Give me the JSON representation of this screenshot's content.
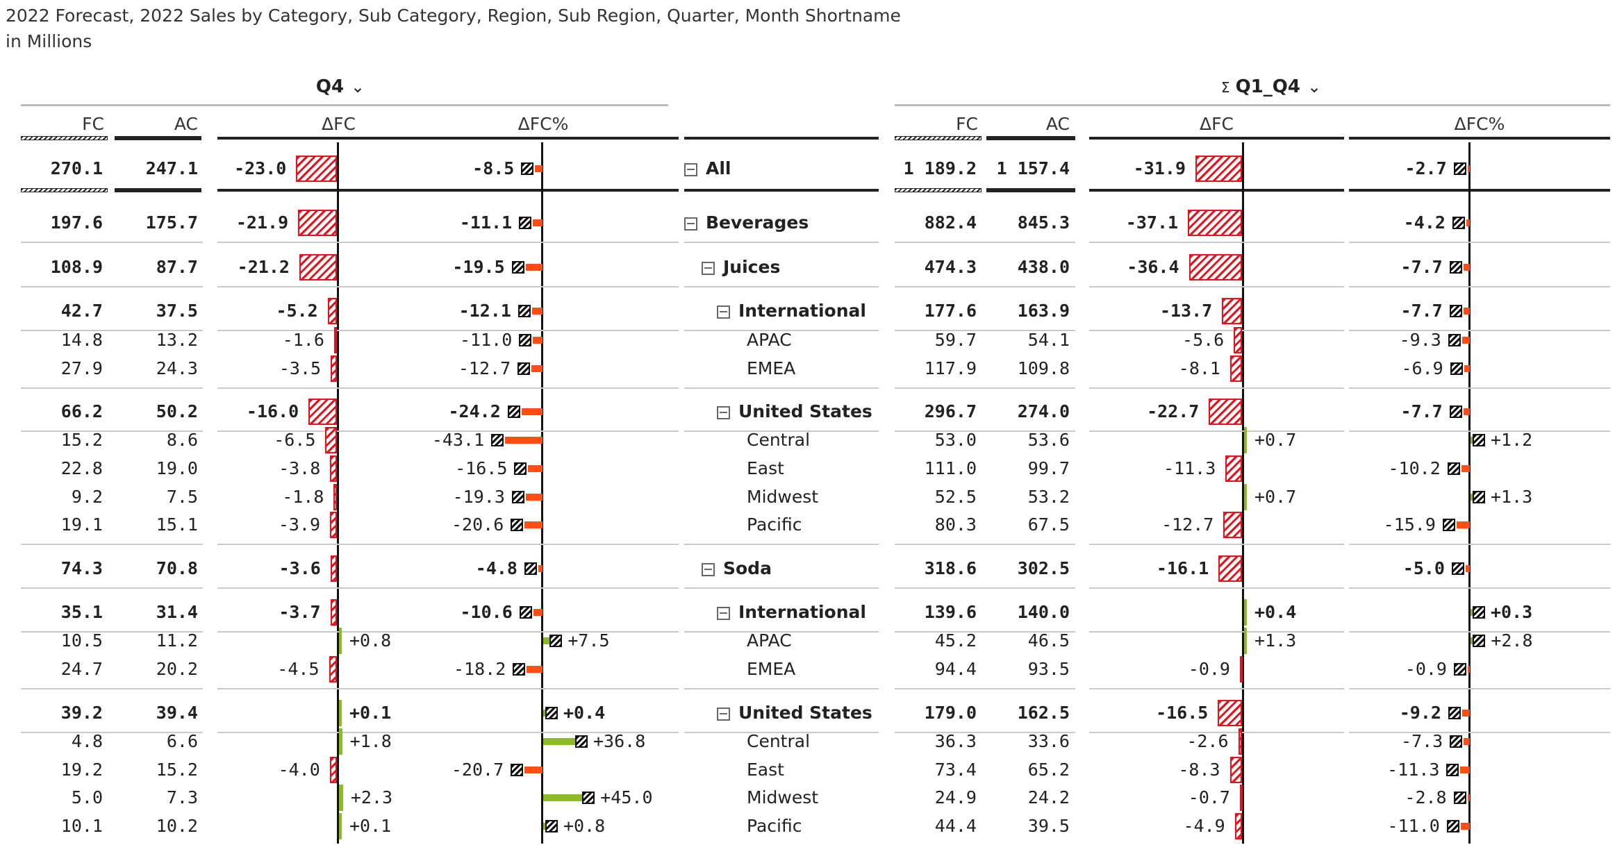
{
  "title": {
    "line1": "2022 Forecast, 2022 Sales by Category, Sub Category, Region, Sub Region, Quarter, Month Shortname",
    "line2": "in Millions"
  },
  "groups": {
    "left": {
      "label": "Q4",
      "icon": "chevron-down-icon"
    },
    "right": {
      "sigma": "Σ",
      "label": "Q1_Q4",
      "icon": "chevron-down-icon"
    }
  },
  "columns": {
    "fc": "FC",
    "ac": "AC",
    "dfc": "ΔFC",
    "dfcp": "ΔFC%"
  },
  "colors": {
    "negative": "#e8101b",
    "negative_pct": "#ff4d14",
    "positive": "#8dbb25",
    "axis": "#111111"
  },
  "rows": [
    {
      "label": "All",
      "level": 0,
      "toggle": true,
      "bold": true,
      "l_fc": "270.1",
      "l_ac": "247.1",
      "l_dfc": "-23.0",
      "l_dfc_v": -23.0,
      "l_pct": "-8.5",
      "l_pct_v": -8.5,
      "r_fc": "1 189.2",
      "r_ac": "1 157.4",
      "r_dfc": "-31.9",
      "r_dfc_v": -31.9,
      "r_pct": "-2.7",
      "r_pct_v": -2.7
    },
    {
      "label": "Beverages",
      "level": 0,
      "toggle": true,
      "bold": true,
      "l_fc": "197.6",
      "l_ac": "175.7",
      "l_dfc": "-21.9",
      "l_dfc_v": -21.9,
      "l_pct": "-11.1",
      "l_pct_v": -11.1,
      "r_fc": "882.4",
      "r_ac": "845.3",
      "r_dfc": "-37.1",
      "r_dfc_v": -37.1,
      "r_pct": "-4.2",
      "r_pct_v": -4.2
    },
    {
      "label": "Juices",
      "level": 1,
      "toggle": true,
      "bold": true,
      "l_fc": "108.9",
      "l_ac": "87.7",
      "l_dfc": "-21.2",
      "l_dfc_v": -21.2,
      "l_pct": "-19.5",
      "l_pct_v": -19.5,
      "r_fc": "474.3",
      "r_ac": "438.0",
      "r_dfc": "-36.4",
      "r_dfc_v": -36.4,
      "r_pct": "-7.7",
      "r_pct_v": -7.7
    },
    {
      "label": "International",
      "level": 2,
      "toggle": true,
      "bold": true,
      "l_fc": "42.7",
      "l_ac": "37.5",
      "l_dfc": "-5.2",
      "l_dfc_v": -5.2,
      "l_pct": "-12.1",
      "l_pct_v": -12.1,
      "r_fc": "177.6",
      "r_ac": "163.9",
      "r_dfc": "-13.7",
      "r_dfc_v": -13.7,
      "r_pct": "-7.7",
      "r_pct_v": -7.7
    },
    {
      "label": "APAC",
      "level": 3,
      "toggle": false,
      "bold": false,
      "l_fc": "14.8",
      "l_ac": "13.2",
      "l_dfc": "-1.6",
      "l_dfc_v": -1.6,
      "l_pct": "-11.0",
      "l_pct_v": -11.0,
      "r_fc": "59.7",
      "r_ac": "54.1",
      "r_dfc": "-5.6",
      "r_dfc_v": -5.6,
      "r_pct": "-9.3",
      "r_pct_v": -9.3
    },
    {
      "label": "EMEA",
      "level": 3,
      "toggle": false,
      "bold": false,
      "l_fc": "27.9",
      "l_ac": "24.3",
      "l_dfc": "-3.5",
      "l_dfc_v": -3.5,
      "l_pct": "-12.7",
      "l_pct_v": -12.7,
      "r_fc": "117.9",
      "r_ac": "109.8",
      "r_dfc": "-8.1",
      "r_dfc_v": -8.1,
      "r_pct": "-6.9",
      "r_pct_v": -6.9
    },
    {
      "label": "United States",
      "level": 2,
      "toggle": true,
      "bold": true,
      "l_fc": "66.2",
      "l_ac": "50.2",
      "l_dfc": "-16.0",
      "l_dfc_v": -16.0,
      "l_pct": "-24.2",
      "l_pct_v": -24.2,
      "r_fc": "296.7",
      "r_ac": "274.0",
      "r_dfc": "-22.7",
      "r_dfc_v": -22.7,
      "r_pct": "-7.7",
      "r_pct_v": -7.7
    },
    {
      "label": "Central",
      "level": 3,
      "toggle": false,
      "bold": false,
      "l_fc": "15.2",
      "l_ac": "8.6",
      "l_dfc": "-6.5",
      "l_dfc_v": -6.5,
      "l_pct": "-43.1",
      "l_pct_v": -43.1,
      "r_fc": "53.0",
      "r_ac": "53.6",
      "r_dfc": "+0.7",
      "r_dfc_v": 0.7,
      "r_pct": "+1.2",
      "r_pct_v": 1.2
    },
    {
      "label": "East",
      "level": 3,
      "toggle": false,
      "bold": false,
      "l_fc": "22.8",
      "l_ac": "19.0",
      "l_dfc": "-3.8",
      "l_dfc_v": -3.8,
      "l_pct": "-16.5",
      "l_pct_v": -16.5,
      "r_fc": "111.0",
      "r_ac": "99.7",
      "r_dfc": "-11.3",
      "r_dfc_v": -11.3,
      "r_pct": "-10.2",
      "r_pct_v": -10.2
    },
    {
      "label": "Midwest",
      "level": 3,
      "toggle": false,
      "bold": false,
      "l_fc": "9.2",
      "l_ac": "7.5",
      "l_dfc": "-1.8",
      "l_dfc_v": -1.8,
      "l_pct": "-19.3",
      "l_pct_v": -19.3,
      "r_fc": "52.5",
      "r_ac": "53.2",
      "r_dfc": "+0.7",
      "r_dfc_v": 0.7,
      "r_pct": "+1.3",
      "r_pct_v": 1.3
    },
    {
      "label": "Pacific",
      "level": 3,
      "toggle": false,
      "bold": false,
      "l_fc": "19.1",
      "l_ac": "15.1",
      "l_dfc": "-3.9",
      "l_dfc_v": -3.9,
      "l_pct": "-20.6",
      "l_pct_v": -20.6,
      "r_fc": "80.3",
      "r_ac": "67.5",
      "r_dfc": "-12.7",
      "r_dfc_v": -12.7,
      "r_pct": "-15.9",
      "r_pct_v": -15.9
    },
    {
      "label": "Soda",
      "level": 1,
      "toggle": true,
      "bold": true,
      "l_fc": "74.3",
      "l_ac": "70.8",
      "l_dfc": "-3.6",
      "l_dfc_v": -3.6,
      "l_pct": "-4.8",
      "l_pct_v": -4.8,
      "r_fc": "318.6",
      "r_ac": "302.5",
      "r_dfc": "-16.1",
      "r_dfc_v": -16.1,
      "r_pct": "-5.0",
      "r_pct_v": -5.0
    },
    {
      "label": "International",
      "level": 2,
      "toggle": true,
      "bold": true,
      "l_fc": "35.1",
      "l_ac": "31.4",
      "l_dfc": "-3.7",
      "l_dfc_v": -3.7,
      "l_pct": "-10.6",
      "l_pct_v": -10.6,
      "r_fc": "139.6",
      "r_ac": "140.0",
      "r_dfc": "+0.4",
      "r_dfc_v": 0.4,
      "r_pct": "+0.3",
      "r_pct_v": 0.3
    },
    {
      "label": "APAC",
      "level": 3,
      "toggle": false,
      "bold": false,
      "l_fc": "10.5",
      "l_ac": "11.2",
      "l_dfc": "+0.8",
      "l_dfc_v": 0.8,
      "l_pct": "+7.5",
      "l_pct_v": 7.5,
      "r_fc": "45.2",
      "r_ac": "46.5",
      "r_dfc": "+1.3",
      "r_dfc_v": 1.3,
      "r_pct": "+2.8",
      "r_pct_v": 2.8
    },
    {
      "label": "EMEA",
      "level": 3,
      "toggle": false,
      "bold": false,
      "l_fc": "24.7",
      "l_ac": "20.2",
      "l_dfc": "-4.5",
      "l_dfc_v": -4.5,
      "l_pct": "-18.2",
      "l_pct_v": -18.2,
      "r_fc": "94.4",
      "r_ac": "93.5",
      "r_dfc": "-0.9",
      "r_dfc_v": -0.9,
      "r_pct": "-0.9",
      "r_pct_v": -0.9
    },
    {
      "label": "United States",
      "level": 2,
      "toggle": true,
      "bold": true,
      "l_fc": "39.2",
      "l_ac": "39.4",
      "l_dfc": "+0.1",
      "l_dfc_v": 0.1,
      "l_pct": "+0.4",
      "l_pct_v": 0.4,
      "r_fc": "179.0",
      "r_ac": "162.5",
      "r_dfc": "-16.5",
      "r_dfc_v": -16.5,
      "r_pct": "-9.2",
      "r_pct_v": -9.2
    },
    {
      "label": "Central",
      "level": 3,
      "toggle": false,
      "bold": false,
      "l_fc": "4.8",
      "l_ac": "6.6",
      "l_dfc": "+1.8",
      "l_dfc_v": 1.8,
      "l_pct": "+36.8",
      "l_pct_v": 36.8,
      "r_fc": "36.3",
      "r_ac": "33.6",
      "r_dfc": "-2.6",
      "r_dfc_v": -2.6,
      "r_pct": "-7.3",
      "r_pct_v": -7.3
    },
    {
      "label": "East",
      "level": 3,
      "toggle": false,
      "bold": false,
      "l_fc": "19.2",
      "l_ac": "15.2",
      "l_dfc": "-4.0",
      "l_dfc_v": -4.0,
      "l_pct": "-20.7",
      "l_pct_v": -20.7,
      "r_fc": "73.4",
      "r_ac": "65.2",
      "r_dfc": "-8.3",
      "r_dfc_v": -8.3,
      "r_pct": "-11.3",
      "r_pct_v": -11.3
    },
    {
      "label": "Midwest",
      "level": 3,
      "toggle": false,
      "bold": false,
      "l_fc": "5.0",
      "l_ac": "7.3",
      "l_dfc": "+2.3",
      "l_dfc_v": 2.3,
      "l_pct": "+45.0",
      "l_pct_v": 45.0,
      "r_fc": "24.9",
      "r_ac": "24.2",
      "r_dfc": "-0.7",
      "r_dfc_v": -0.7,
      "r_pct": "-2.8",
      "r_pct_v": -2.8
    },
    {
      "label": "Pacific",
      "level": 3,
      "toggle": false,
      "bold": false,
      "l_fc": "10.1",
      "l_ac": "10.2",
      "l_dfc": "+0.1",
      "l_dfc_v": 0.1,
      "l_pct": "+0.8",
      "l_pct_v": 0.8,
      "r_fc": "44.4",
      "r_ac": "39.5",
      "r_dfc": "-4.9",
      "r_dfc_v": -4.9,
      "r_pct": "-11.0",
      "r_pct_v": -11.0
    }
  ]
}
